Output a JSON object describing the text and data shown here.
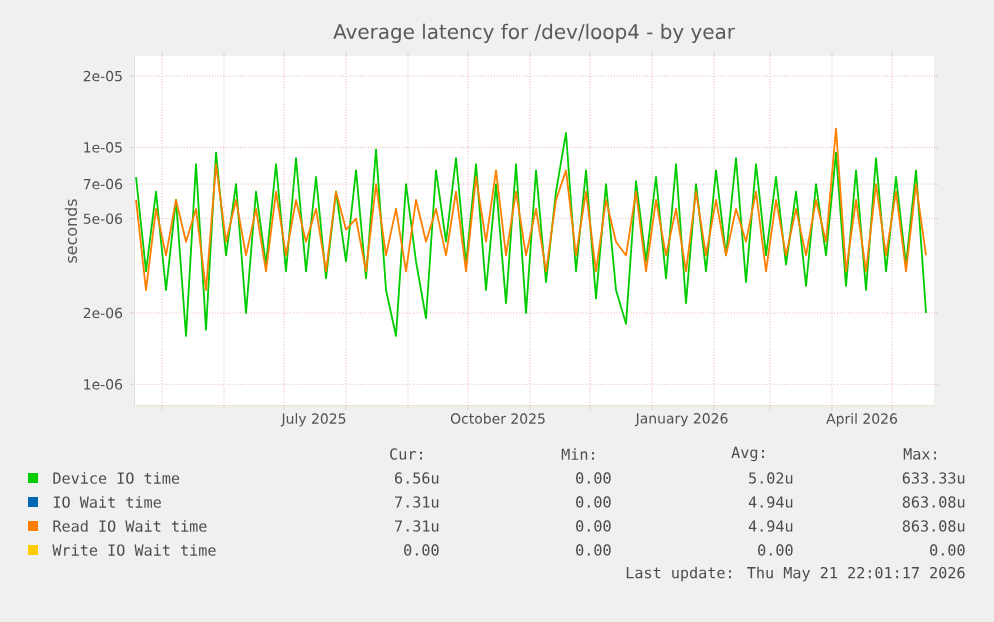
{
  "chart_data": {
    "type": "line",
    "title": "Average latency for /dev/loop4 - by year",
    "ylabel": "seconds",
    "log": "y",
    "grid": true,
    "legend": "bottom",
    "xlim": [
      "2025-04-17",
      "2026-05-22"
    ],
    "ylim": [
      8.1e-07,
      2.43e-05
    ],
    "yticks": [
      {
        "value": 1e-06,
        "label": "1e-06"
      },
      {
        "value": 2e-06,
        "label": "2e-06"
      },
      {
        "value": 5e-06,
        "label": "5e-06"
      },
      {
        "value": 7e-06,
        "label": "7e-06"
      },
      {
        "value": 1e-05,
        "label": "1e-05"
      },
      {
        "value": 2e-05,
        "label": "2e-05"
      }
    ],
    "xticks": [
      {
        "value": "2025-05-01",
        "label": null
      },
      {
        "value": "2025-06-01",
        "label": null
      },
      {
        "value": "2025-07-01",
        "label": null
      },
      {
        "value": "2025-08-01",
        "label": null
      },
      {
        "value": "2025-09-01",
        "label": null
      },
      {
        "value": "2025-10-01",
        "label": null
      },
      {
        "value": "2025-11-01",
        "label": null
      },
      {
        "value": "2025-12-01",
        "label": null
      },
      {
        "value": "2026-01-01",
        "label": null
      },
      {
        "value": "2026-02-01",
        "label": null
      },
      {
        "value": "2026-03-01",
        "label": null
      },
      {
        "value": "2026-04-01",
        "label": null
      },
      {
        "value": "2026-05-01",
        "label": null
      },
      {
        "value": "2025-07-16",
        "label": "July 2025"
      },
      {
        "value": "2025-10-16",
        "label": "October 2025"
      },
      {
        "value": "2026-01-16",
        "label": "January 2026"
      },
      {
        "value": "2026-04-16",
        "label": "April 2026"
      }
    ],
    "x": [
      "2025-04-18",
      "2025-04-23",
      "2025-04-28",
      "2025-05-03",
      "2025-05-08",
      "2025-05-13",
      "2025-05-18",
      "2025-05-23",
      "2025-05-28",
      "2025-06-02",
      "2025-06-07",
      "2025-06-12",
      "2025-06-17",
      "2025-06-22",
      "2025-06-27",
      "2025-07-02",
      "2025-07-07",
      "2025-07-12",
      "2025-07-17",
      "2025-07-22",
      "2025-07-27",
      "2025-08-01",
      "2025-08-06",
      "2025-08-11",
      "2025-08-16",
      "2025-08-21",
      "2025-08-26",
      "2025-08-31",
      "2025-09-05",
      "2025-09-10",
      "2025-09-15",
      "2025-09-20",
      "2025-09-25",
      "2025-09-30",
      "2025-10-05",
      "2025-10-10",
      "2025-10-15",
      "2025-10-20",
      "2025-10-25",
      "2025-10-30",
      "2025-11-04",
      "2025-11-09",
      "2025-11-14",
      "2025-11-19",
      "2025-11-24",
      "2025-11-29",
      "2025-12-04",
      "2025-12-09",
      "2025-12-14",
      "2025-12-19",
      "2025-12-24",
      "2025-12-29",
      "2026-01-03",
      "2026-01-08",
      "2026-01-13",
      "2026-01-18",
      "2026-01-23",
      "2026-01-28",
      "2026-02-02",
      "2026-02-07",
      "2026-02-12",
      "2026-02-17",
      "2026-02-22",
      "2026-02-27",
      "2026-03-04",
      "2026-03-09",
      "2026-03-14",
      "2026-03-19",
      "2026-03-24",
      "2026-03-29",
      "2026-04-03",
      "2026-04-08",
      "2026-04-13",
      "2026-04-18",
      "2026-04-23",
      "2026-04-28",
      "2026-05-03",
      "2026-05-08",
      "2026-05-13",
      "2026-05-18"
    ],
    "series": [
      {
        "name": "Device IO time",
        "color": "#00cc00",
        "values": [
          7.5e-06,
          3e-06,
          6.5e-06,
          2.5e-06,
          6e-06,
          1.6e-06,
          8.5e-06,
          1.7e-06,
          9.5e-06,
          3.5e-06,
          7e-06,
          2e-06,
          6.5e-06,
          3.2e-06,
          8.5e-06,
          3e-06,
          9e-06,
          3e-06,
          7.5e-06,
          2.8e-06,
          6.5e-06,
          3.3e-06,
          8e-06,
          2.8e-06,
          9.8e-06,
          2.5e-06,
          1.6e-06,
          7e-06,
          3.3e-06,
          1.9e-06,
          8e-06,
          4e-06,
          9e-06,
          3.2e-06,
          8.5e-06,
          2.5e-06,
          7e-06,
          2.2e-06,
          8.5e-06,
          2e-06,
          8e-06,
          2.7e-06,
          6.5e-06,
          1.15e-05,
          3e-06,
          8e-06,
          2.3e-06,
          7e-06,
          2.5e-06,
          1.8e-06,
          7.2e-06,
          3.3e-06,
          7.5e-06,
          2.8e-06,
          8.5e-06,
          2.2e-06,
          7e-06,
          3e-06,
          8e-06,
          3.5e-06,
          9e-06,
          2.7e-06,
          8.5e-06,
          3.5e-06,
          7.5e-06,
          3.2e-06,
          6.5e-06,
          2.6e-06,
          7e-06,
          3.5e-06,
          9.5e-06,
          2.6e-06,
          8e-06,
          2.5e-06,
          9e-06,
          3e-06,
          7.5e-06,
          3.2e-06,
          8e-06,
          2e-06
        ]
      },
      {
        "name": "IO Wait time",
        "color": "#0066b3",
        "values": [
          null,
          null,
          null,
          null,
          null,
          null,
          null,
          null,
          null,
          null,
          null,
          null,
          null,
          null,
          null,
          null,
          null,
          null,
          null,
          null,
          null,
          null,
          null,
          null,
          null,
          null,
          null,
          null,
          null,
          null,
          null,
          null,
          null,
          null,
          null,
          null,
          null,
          null,
          null,
          null,
          null,
          null,
          null,
          null,
          null,
          null,
          null,
          null,
          null,
          null,
          null,
          null,
          null,
          null,
          null,
          null,
          null,
          null,
          null,
          null,
          null,
          null,
          null,
          null,
          null,
          null,
          null,
          null,
          null,
          null,
          null,
          null,
          null,
          null,
          null,
          null,
          null,
          null,
          null,
          null
        ]
      },
      {
        "name": "Read IO Wait time",
        "color": "#ff8000",
        "values": [
          6e-06,
          2.5e-06,
          5.5e-06,
          3.5e-06,
          6e-06,
          4e-06,
          5.5e-06,
          2.5e-06,
          8.5e-06,
          4e-06,
          6e-06,
          3.5e-06,
          5.5e-06,
          3e-06,
          6.5e-06,
          3.5e-06,
          6e-06,
          4e-06,
          5.5e-06,
          3e-06,
          6.5e-06,
          4.5e-06,
          5e-06,
          3e-06,
          7e-06,
          3.5e-06,
          5.5e-06,
          3e-06,
          6e-06,
          4e-06,
          5.5e-06,
          3.5e-06,
          6.5e-06,
          3e-06,
          7.5e-06,
          4e-06,
          8e-06,
          3.5e-06,
          6.5e-06,
          3.5e-06,
          5.5e-06,
          3e-06,
          6e-06,
          8e-06,
          3.5e-06,
          6.5e-06,
          3e-06,
          6e-06,
          4e-06,
          3.5e-06,
          6.5e-06,
          3e-06,
          6e-06,
          3.5e-06,
          5.5e-06,
          3e-06,
          6.5e-06,
          3.5e-06,
          6e-06,
          3.5e-06,
          5.5e-06,
          4e-06,
          6.5e-06,
          3e-06,
          6e-06,
          3.5e-06,
          5.5e-06,
          3.5e-06,
          6e-06,
          4e-06,
          1.2e-05,
          3e-06,
          6e-06,
          3e-06,
          7e-06,
          3.5e-06,
          6.5e-06,
          3e-06,
          7e-06,
          3.5e-06
        ]
      },
      {
        "name": "Write IO Wait time",
        "color": "#ffcc00",
        "values": [
          null,
          null,
          null,
          null,
          null,
          null,
          null,
          null,
          null,
          null,
          null,
          null,
          null,
          null,
          null,
          null,
          null,
          null,
          null,
          null,
          null,
          null,
          null,
          null,
          null,
          null,
          null,
          null,
          null,
          null,
          null,
          null,
          null,
          null,
          null,
          null,
          null,
          null,
          null,
          null,
          null,
          null,
          null,
          null,
          null,
          null,
          null,
          null,
          null,
          null,
          null,
          null,
          null,
          null,
          null,
          null,
          null,
          null,
          null,
          null,
          null,
          null,
          null,
          null,
          null,
          null,
          null,
          null,
          null,
          null,
          null,
          null,
          null,
          null,
          null,
          null,
          null,
          null,
          null,
          null
        ]
      }
    ],
    "annotations": [
      "Cur:",
      "Min:",
      "Avg:",
      "Max:",
      "6.56u",
      "0.00",
      "5.02u",
      "633.33u",
      "7.31u",
      "0.00",
      "4.94u",
      "863.08u",
      "7.31u",
      "0.00",
      "4.94u",
      "863.08u",
      "0.00",
      "0.00",
      "0.00",
      "0.00",
      "Last update: Thu May 21 22:01:17 2026"
    ]
  }
}
